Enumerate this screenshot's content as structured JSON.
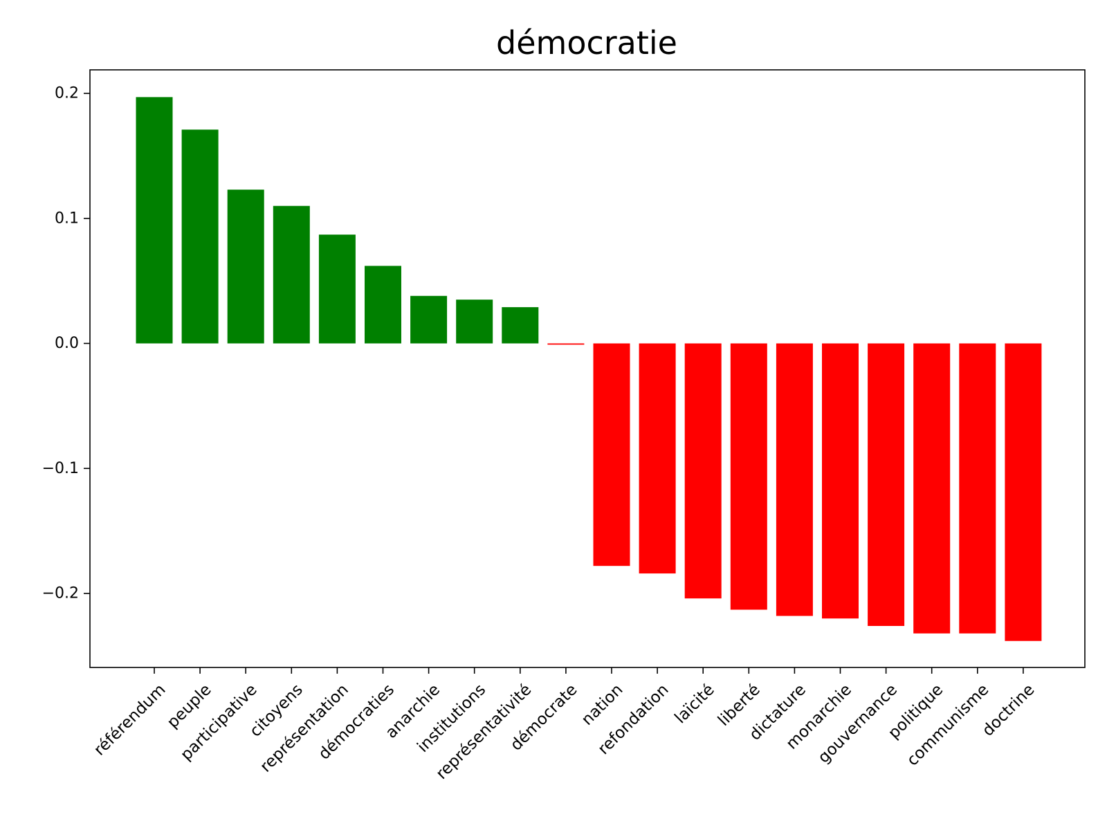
{
  "chart_data": {
    "type": "bar",
    "title": "démocratie",
    "xlabel": "",
    "ylabel": "",
    "ylim": [
      -0.26,
      0.22
    ],
    "yticks": [
      0.2,
      0.1,
      0.0,
      -0.1,
      -0.2
    ],
    "ytick_labels": [
      "0.2",
      "0.1",
      "0.0",
      "−0.1",
      "−0.2"
    ],
    "positive_color": "#008000",
    "negative_color": "#ff0000",
    "grid": false,
    "categories": [
      "référendum",
      "peuple",
      "participative",
      "citoyens",
      "représentation",
      "démocraties",
      "anarchie",
      "institutions",
      "représentativité",
      "démocrate",
      "nation",
      "refondation",
      "laïcité",
      "liberté",
      "dictature",
      "monarchie",
      "gouvernance",
      "politique",
      "communisme",
      "doctrine"
    ],
    "values": [
      0.197,
      0.171,
      0.123,
      0.11,
      0.087,
      0.062,
      0.038,
      0.035,
      0.029,
      -0.001,
      -0.178,
      -0.184,
      -0.204,
      -0.213,
      -0.218,
      -0.22,
      -0.226,
      -0.232,
      -0.232,
      -0.238
    ]
  }
}
